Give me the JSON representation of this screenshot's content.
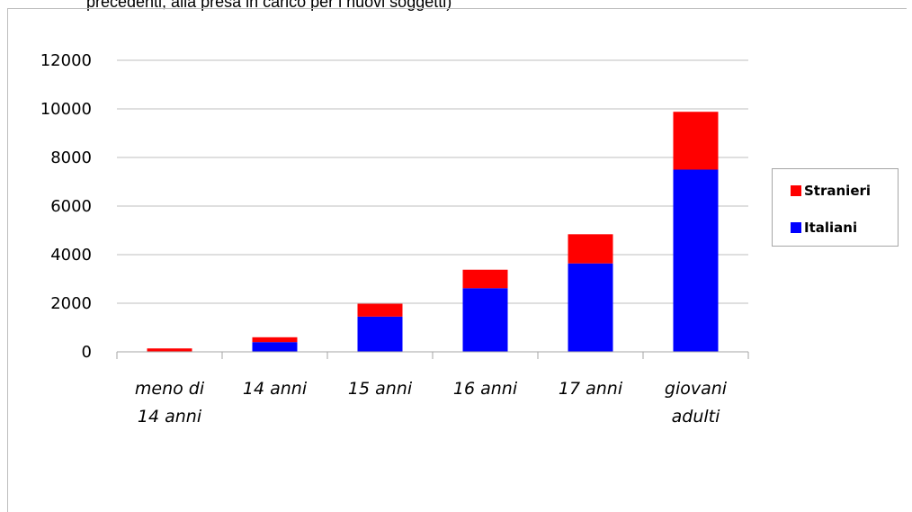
{
  "caption": "precedenti, alla presa in carico per i nuovi soggetti)",
  "chart_data": {
    "type": "bar",
    "stacked": true,
    "categories": [
      [
        "meno di",
        "14 anni"
      ],
      [
        "14 anni"
      ],
      [
        "15 anni"
      ],
      [
        "16 anni"
      ],
      [
        "17 anni"
      ],
      [
        "giovani",
        "adulti"
      ]
    ],
    "series": [
      {
        "name": "Italiani",
        "color": "#0000ff",
        "values": [
          20,
          400,
          1450,
          2620,
          3640,
          7500
        ]
      },
      {
        "name": "Stranieri",
        "color": "#ff0000",
        "values": [
          120,
          200,
          530,
          760,
          1200,
          2380
        ]
      }
    ],
    "ylim": [
      0,
      12000
    ],
    "yticks": [
      "0",
      "2000",
      "4000",
      "6000",
      "8000",
      "10000",
      "12000"
    ],
    "grid": true,
    "legend": {
      "placement": "right",
      "order": [
        "Stranieri",
        "Italiani"
      ]
    }
  }
}
